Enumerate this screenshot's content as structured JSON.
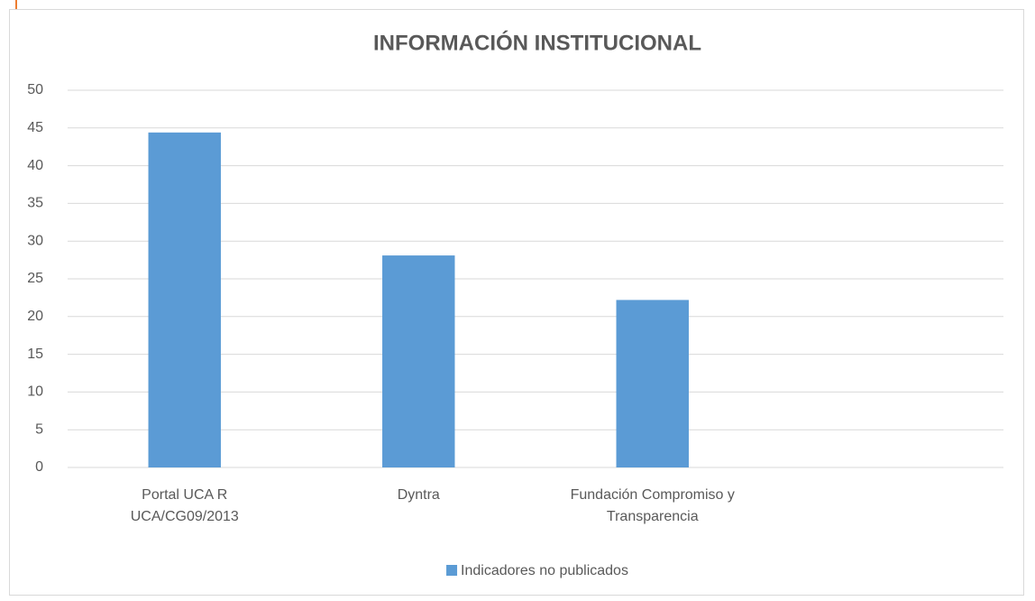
{
  "chart_data": {
    "type": "bar",
    "title": "INFORMACIÓN INSTITUCIONAL",
    "categories": [
      "Portal UCA R UCA/CG09/2013",
      "Dyntra",
      "Fundación Compromiso y Transparencia",
      null
    ],
    "series": [
      {
        "name": "Indicadores no publicados",
        "color": "#5b9bd5",
        "values": [
          44.4,
          28.1,
          22.2,
          null
        ]
      }
    ],
    "ylim": [
      0,
      50
    ],
    "yticks": [
      0,
      5,
      10,
      15,
      20,
      25,
      30,
      35,
      40,
      45,
      50
    ],
    "grid": true,
    "legend": "bottom"
  }
}
